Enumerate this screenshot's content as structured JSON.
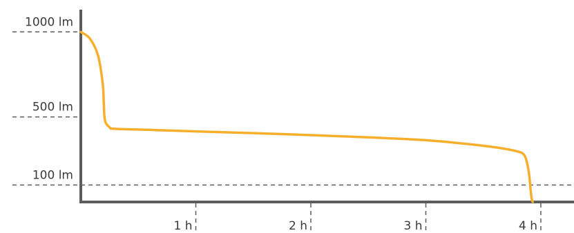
{
  "chart_data": {
    "type": "line",
    "title": "",
    "xlabel": "",
    "ylabel": "",
    "grid": false,
    "legend": "none",
    "colors": {
      "series": "#f6ae2d",
      "axis": "#5c5c5c",
      "text": "#3a3a3a"
    },
    "x_ticks": [
      {
        "value": 1,
        "label": "1 h"
      },
      {
        "value": 2,
        "label": "2 h"
      },
      {
        "value": 3,
        "label": "3 h"
      },
      {
        "value": 4,
        "label": "4 h"
      }
    ],
    "y_ticks": [
      {
        "value": 1000,
        "label": "1000 lm"
      },
      {
        "value": 500,
        "label": "500 lm"
      },
      {
        "value": 100,
        "label": "100 lm"
      }
    ],
    "xlim": [
      0,
      4.2
    ],
    "ylim": [
      0,
      1100
    ],
    "series": [
      {
        "x": [
          0,
          0.08,
          0.15,
          0.19,
          0.2,
          0.21,
          0.25,
          0.3,
          0.6,
          1,
          1.5,
          2,
          2.5,
          3,
          3.3,
          3.6,
          3.78,
          3.85,
          3.88,
          3.9,
          3.91,
          3.92,
          3.93
        ],
        "y": [
          1000,
          960,
          860,
          700,
          580,
          480,
          440,
          430,
          424,
          415,
          405,
          393,
          380,
          363,
          345,
          322,
          300,
          280,
          230,
          150,
          80,
          20,
          0
        ]
      }
    ]
  }
}
